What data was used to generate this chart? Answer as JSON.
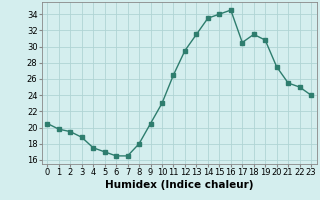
{
  "x": [
    0,
    1,
    2,
    3,
    4,
    5,
    6,
    7,
    8,
    9,
    10,
    11,
    12,
    13,
    14,
    15,
    16,
    17,
    18,
    19,
    20,
    21,
    22,
    23
  ],
  "y": [
    20.5,
    19.8,
    19.5,
    18.8,
    17.5,
    17.0,
    16.5,
    16.5,
    18.0,
    20.5,
    23.0,
    26.5,
    29.5,
    31.5,
    33.5,
    34.0,
    34.5,
    30.5,
    31.5,
    30.8,
    27.5,
    25.5,
    25.0,
    24.0
  ],
  "xlabel": "Humidex (Indice chaleur)",
  "ylim": [
    15.5,
    35.5
  ],
  "xlim": [
    -0.5,
    23.5
  ],
  "yticks": [
    16,
    18,
    20,
    22,
    24,
    26,
    28,
    30,
    32,
    34
  ],
  "xticks": [
    0,
    1,
    2,
    3,
    4,
    5,
    6,
    7,
    8,
    9,
    10,
    11,
    12,
    13,
    14,
    15,
    16,
    17,
    18,
    19,
    20,
    21,
    22,
    23
  ],
  "line_color": "#2e7d6e",
  "marker": "s",
  "marker_size": 2.2,
  "bg_color": "#d4eeee",
  "grid_color": "#b0d4d4",
  "axis_color": "#888888",
  "tick_fontsize": 6.0,
  "xlabel_fontsize": 7.5
}
